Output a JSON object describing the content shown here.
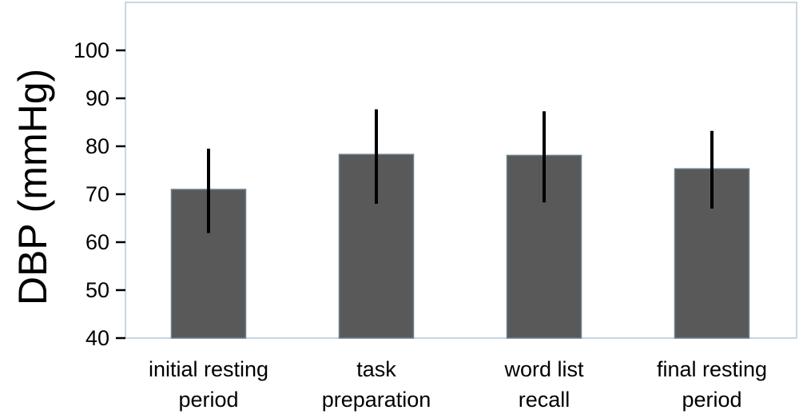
{
  "chart_data": {
    "type": "bar",
    "title": "",
    "xlabel": "",
    "ylabel": "DBP (mmHg)",
    "ylim": [
      40,
      110
    ],
    "yticks": [
      40,
      50,
      60,
      70,
      80,
      90,
      100
    ],
    "categories": [
      [
        "initial resting",
        "period"
      ],
      [
        "task",
        "preparation"
      ],
      [
        "word list",
        "recall"
      ],
      [
        "final resting",
        "period"
      ]
    ],
    "values": [
      71,
      78.3,
      78.1,
      75.3
    ],
    "error_low": [
      61.9,
      68.0,
      68.3,
      67.0
    ],
    "error_high": [
      79.5,
      87.7,
      87.3,
      83.2
    ],
    "bar_color": "#595959",
    "bar_edge_color": "#6a8090",
    "error_color": "#000000",
    "frame_color": "#b8cad6",
    "grid": false,
    "legend": "none"
  }
}
